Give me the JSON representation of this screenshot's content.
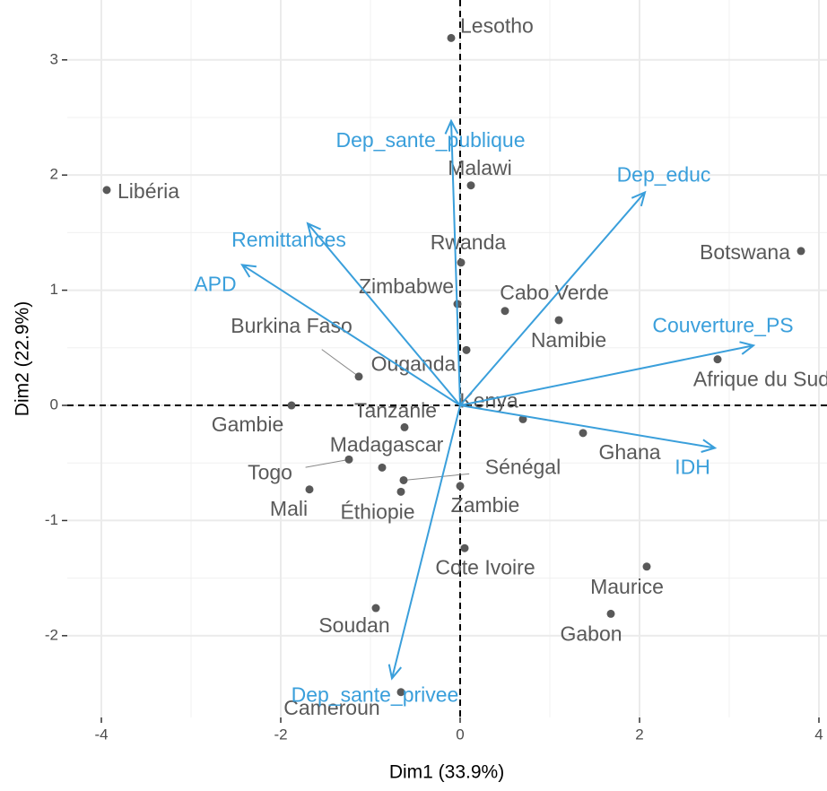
{
  "chart_data": {
    "type": "biplot",
    "xlabel": "Dim1 (33.9%)",
    "ylabel": "Dim2 (22.9%)",
    "xlim": [
      -4.38,
      4.09
    ],
    "ylim": [
      -2.71,
      3.52
    ],
    "xticks": [
      -4,
      -2,
      0,
      2,
      4
    ],
    "yticks": [
      -2,
      -1,
      0,
      1,
      2,
      3
    ],
    "grid": true,
    "zero_lines": true,
    "color": "#595959",
    "arrow_color": "#3a9fdb",
    "labels": [
      "Lesotho",
      "Libéria",
      "Malawi",
      "Rwanda",
      "Botswana",
      "Zimbabwe",
      "Cabo Verde",
      "Namibie",
      "Burkina Faso",
      "Ouganda",
      "Afrique du Sud",
      "Gambie",
      "Tanzanie",
      "Kenya",
      "Ghana",
      "Madagascar",
      "Togo",
      "Sénégal",
      "Mali",
      "Éthiopie",
      "Zambie",
      "Cote Ivoire",
      "Maurice",
      "Gabon",
      "Soudan",
      "Cameroun"
    ],
    "x": [
      -0.1,
      -3.94,
      0.12,
      0.01,
      3.8,
      -0.03,
      0.5,
      1.1,
      -1.13,
      0.07,
      2.87,
      -1.88,
      -0.62,
      0.7,
      1.37,
      -0.87,
      -1.24,
      -0.63,
      -1.68,
      -0.66,
      0.0,
      0.05,
      2.08,
      1.68,
      -0.94,
      -0.66
    ],
    "y": [
      3.19,
      1.87,
      1.91,
      1.24,
      1.34,
      0.88,
      0.82,
      0.74,
      0.25,
      0.48,
      0.4,
      0.0,
      -0.19,
      -0.12,
      -0.24,
      -0.54,
      -0.47,
      -0.65,
      -0.73,
      -0.75,
      -0.7,
      -1.24,
      -1.4,
      -1.81,
      -1.76,
      -2.49
    ],
    "arrows": {
      "labels": [
        "Dep_sante_publique",
        "Dep_educ",
        "Remittances",
        "APD",
        "Couverture_PS",
        "IDH",
        "Dep_sante_privee"
      ],
      "x": [
        -0.1,
        2.06,
        -1.7,
        -2.43,
        3.27,
        2.84,
        -0.76
      ],
      "y": [
        2.47,
        1.85,
        1.58,
        1.22,
        0.52,
        -0.37,
        -2.37
      ]
    }
  }
}
